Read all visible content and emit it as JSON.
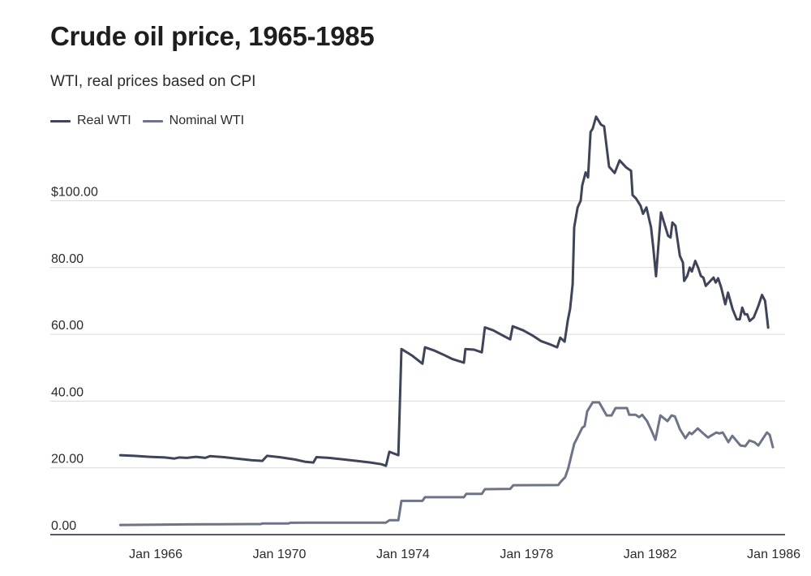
{
  "chart_data": {
    "type": "line",
    "title": "Crude oil price, 1965-1985",
    "subtitle": "WTI, real prices based on CPI",
    "xlabel": "",
    "ylabel": "",
    "x_range": [
      1965.0,
      1986.0
    ],
    "ylim": [
      0,
      125
    ],
    "y_ticks": [
      0,
      20,
      40,
      60,
      80,
      100
    ],
    "y_tick_labels": [
      "0.00",
      "20.00",
      "40.00",
      "60.00",
      "80.00",
      "$100.00"
    ],
    "x_ticks": [
      1966,
      1970,
      1974,
      1978,
      1982,
      1986
    ],
    "x_tick_labels": [
      "Jan 1966",
      "Jan 1970",
      "Jan 1974",
      "Jan 1978",
      "Jan 1982",
      "Jan 1986"
    ],
    "grid": "horizontal",
    "legend_position": "top-left",
    "series": [
      {
        "name": "Real WTI",
        "color": "#3f4558",
        "points": [
          [
            1964.85,
            23.8
          ],
          [
            1965.3,
            23.6
          ],
          [
            1965.8,
            23.3
          ],
          [
            1966.3,
            23.1
          ],
          [
            1966.6,
            22.8
          ],
          [
            1966.75,
            23.1
          ],
          [
            1967.0,
            23.0
          ],
          [
            1967.3,
            23.3
          ],
          [
            1967.6,
            23.0
          ],
          [
            1967.75,
            23.5
          ],
          [
            1968.2,
            23.2
          ],
          [
            1968.7,
            22.7
          ],
          [
            1969.1,
            22.3
          ],
          [
            1969.45,
            22.1
          ],
          [
            1969.6,
            23.6
          ],
          [
            1970.0,
            23.2
          ],
          [
            1970.5,
            22.5
          ],
          [
            1970.85,
            21.8
          ],
          [
            1971.1,
            21.6
          ],
          [
            1971.2,
            23.2
          ],
          [
            1971.6,
            23.0
          ],
          [
            1972.0,
            22.6
          ],
          [
            1972.5,
            22.1
          ],
          [
            1972.95,
            21.6
          ],
          [
            1973.3,
            21.1
          ],
          [
            1973.45,
            20.6
          ],
          [
            1973.56,
            24.8
          ],
          [
            1973.85,
            23.8
          ],
          [
            1973.95,
            55.6
          ],
          [
            1974.3,
            53.6
          ],
          [
            1974.63,
            51.2
          ],
          [
            1974.71,
            56.1
          ],
          [
            1975.0,
            55.2
          ],
          [
            1975.31,
            53.9
          ],
          [
            1975.6,
            52.6
          ],
          [
            1975.97,
            51.5
          ],
          [
            1976.02,
            55.6
          ],
          [
            1976.3,
            55.4
          ],
          [
            1976.55,
            54.6
          ],
          [
            1976.65,
            62.1
          ],
          [
            1976.92,
            61.2
          ],
          [
            1977.2,
            59.8
          ],
          [
            1977.47,
            58.5
          ],
          [
            1977.55,
            62.4
          ],
          [
            1977.89,
            61.2
          ],
          [
            1978.2,
            59.6
          ],
          [
            1978.46,
            58.0
          ],
          [
            1978.75,
            57.0
          ],
          [
            1978.99,
            56.1
          ],
          [
            1979.09,
            59.0
          ],
          [
            1979.23,
            57.8
          ],
          [
            1979.33,
            64.0
          ],
          [
            1979.41,
            67.7
          ],
          [
            1979.49,
            75.0
          ],
          [
            1979.54,
            92.0
          ],
          [
            1979.65,
            98.0
          ],
          [
            1979.75,
            100.0
          ],
          [
            1979.8,
            104.6
          ],
          [
            1979.91,
            108.5
          ],
          [
            1979.99,
            107.0
          ],
          [
            1980.07,
            120.6
          ],
          [
            1980.14,
            121.6
          ],
          [
            1980.25,
            125.2
          ],
          [
            1980.41,
            122.8
          ],
          [
            1980.51,
            122.3
          ],
          [
            1980.67,
            110.2
          ],
          [
            1980.85,
            108.3
          ],
          [
            1981.01,
            112.1
          ],
          [
            1981.22,
            110.0
          ],
          [
            1981.38,
            109.0
          ],
          [
            1981.43,
            101.7
          ],
          [
            1981.54,
            100.7
          ],
          [
            1981.69,
            98.5
          ],
          [
            1981.77,
            96.1
          ],
          [
            1981.88,
            98.0
          ],
          [
            1982.03,
            92.0
          ],
          [
            1982.1,
            86.0
          ],
          [
            1982.19,
            77.4
          ],
          [
            1982.35,
            96.5
          ],
          [
            1982.58,
            89.5
          ],
          [
            1982.66,
            89.0
          ],
          [
            1982.72,
            93.5
          ],
          [
            1982.82,
            92.5
          ],
          [
            1982.96,
            83.5
          ],
          [
            1983.06,
            81.5
          ],
          [
            1983.1,
            76.0
          ],
          [
            1983.2,
            77.5
          ],
          [
            1983.28,
            80.0
          ],
          [
            1983.35,
            78.8
          ],
          [
            1983.46,
            82.0
          ],
          [
            1983.55,
            80.0
          ],
          [
            1983.64,
            77.5
          ],
          [
            1983.72,
            77.0
          ],
          [
            1983.8,
            74.5
          ],
          [
            1984.05,
            77.0
          ],
          [
            1984.12,
            75.5
          ],
          [
            1984.2,
            76.8
          ],
          [
            1984.3,
            74.0
          ],
          [
            1984.43,
            69.0
          ],
          [
            1984.52,
            72.5
          ],
          [
            1984.67,
            67.5
          ],
          [
            1984.8,
            64.5
          ],
          [
            1984.9,
            64.5
          ],
          [
            1984.98,
            68.0
          ],
          [
            1985.06,
            66.0
          ],
          [
            1985.14,
            66.0
          ],
          [
            1985.22,
            64.0
          ],
          [
            1985.35,
            65.0
          ],
          [
            1985.5,
            68.5
          ],
          [
            1985.62,
            71.8
          ],
          [
            1985.72,
            70.0
          ],
          [
            1985.82,
            62.0
          ]
        ]
      },
      {
        "name": "Nominal WTI",
        "color": "#6e7487",
        "points": [
          [
            1964.85,
            2.9
          ],
          [
            1966.0,
            3.0
          ],
          [
            1967.0,
            3.05
          ],
          [
            1968.0,
            3.1
          ],
          [
            1969.0,
            3.15
          ],
          [
            1969.4,
            3.15
          ],
          [
            1969.45,
            3.35
          ],
          [
            1970.0,
            3.35
          ],
          [
            1970.3,
            3.35
          ],
          [
            1970.35,
            3.55
          ],
          [
            1971.0,
            3.6
          ],
          [
            1972.0,
            3.6
          ],
          [
            1973.0,
            3.6
          ],
          [
            1973.45,
            3.6
          ],
          [
            1973.56,
            4.3
          ],
          [
            1973.85,
            4.3
          ],
          [
            1973.95,
            10.1
          ],
          [
            1974.63,
            10.1
          ],
          [
            1974.71,
            11.2
          ],
          [
            1975.97,
            11.2
          ],
          [
            1976.05,
            12.2
          ],
          [
            1976.55,
            12.2
          ],
          [
            1976.65,
            13.6
          ],
          [
            1977.47,
            13.7
          ],
          [
            1977.57,
            14.8
          ],
          [
            1979.02,
            14.85
          ],
          [
            1979.12,
            16.0
          ],
          [
            1979.25,
            17.2
          ],
          [
            1979.35,
            19.9
          ],
          [
            1979.54,
            27.2
          ],
          [
            1979.62,
            28.6
          ],
          [
            1979.8,
            32.0
          ],
          [
            1979.88,
            32.5
          ],
          [
            1979.96,
            36.9
          ],
          [
            1980.14,
            39.6
          ],
          [
            1980.35,
            39.6
          ],
          [
            1980.59,
            35.7
          ],
          [
            1980.75,
            35.7
          ],
          [
            1980.88,
            37.9
          ],
          [
            1981.25,
            37.9
          ],
          [
            1981.32,
            35.9
          ],
          [
            1981.53,
            35.9
          ],
          [
            1981.64,
            35.2
          ],
          [
            1981.74,
            35.9
          ],
          [
            1981.9,
            34.0
          ],
          [
            1982.05,
            31.0
          ],
          [
            1982.17,
            28.4
          ],
          [
            1982.33,
            35.7
          ],
          [
            1982.56,
            34.0
          ],
          [
            1982.69,
            35.7
          ],
          [
            1982.8,
            35.4
          ],
          [
            1982.96,
            31.6
          ],
          [
            1983.14,
            28.9
          ],
          [
            1983.27,
            30.6
          ],
          [
            1983.35,
            30.1
          ],
          [
            1983.54,
            31.8
          ],
          [
            1983.72,
            30.3
          ],
          [
            1983.87,
            29.1
          ],
          [
            1984.14,
            30.6
          ],
          [
            1984.24,
            30.3
          ],
          [
            1984.35,
            30.6
          ],
          [
            1984.53,
            27.7
          ],
          [
            1984.66,
            29.6
          ],
          [
            1984.92,
            26.7
          ],
          [
            1985.08,
            26.5
          ],
          [
            1985.21,
            28.2
          ],
          [
            1985.37,
            27.7
          ],
          [
            1985.5,
            26.7
          ],
          [
            1985.78,
            30.6
          ],
          [
            1985.87,
            29.9
          ],
          [
            1985.97,
            26.2
          ]
        ]
      }
    ]
  }
}
